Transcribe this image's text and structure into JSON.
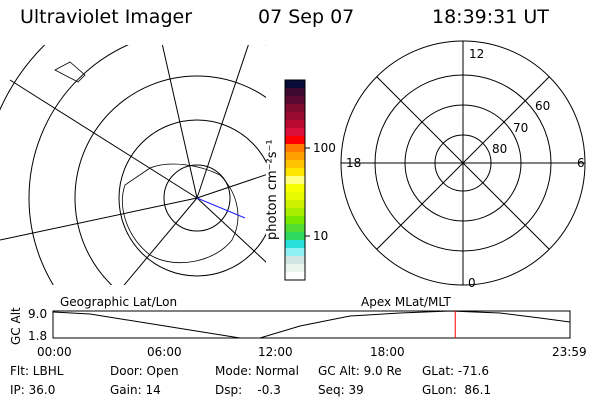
{
  "header": {
    "title": "Ultraviolet Imager",
    "date": "07 Sep 07",
    "time": "18:39:31 UT"
  },
  "colorbar": {
    "label": "photon cm⁻²s⁻¹",
    "ticks": [
      "100",
      "10"
    ],
    "colors": [
      "#0a0c38",
      "#3c0a30",
      "#5a0a30",
      "#800a30",
      "#9a0a30",
      "#b80a30",
      "#d8103a",
      "#ff0000",
      "#ff7800",
      "#ffa000",
      "#ffc400",
      "#ffe600",
      "#ffff80",
      "#f8ff00",
      "#e8fa00",
      "#ccf200",
      "#a8ee00",
      "#78e800",
      "#50dc30",
      "#30d860",
      "#28e0d8",
      "#90f0f4",
      "#d0e4e2",
      "#e8f4ec",
      "#ffffff"
    ]
  },
  "polar_plot": {
    "mlt_labels": [
      "12",
      "18",
      "6",
      "0"
    ],
    "lat_labels": [
      "60",
      "70",
      "80"
    ]
  },
  "timeline": {
    "left_label": "Geographic Lat/Lon",
    "right_label": "Apex MLat/MLT",
    "y_axis_label": "GC Alt",
    "y_ticks": [
      "9.0",
      "1.8"
    ],
    "x_ticks": [
      "00:00",
      "06:00",
      "12:00",
      "18:00",
      "23:59"
    ],
    "current_time_hours": 18.66,
    "current_marker_color": "#ff0000"
  },
  "status": {
    "flt": "Flt: LBHL",
    "ip": "IP: 36.0",
    "door": "Door: Open",
    "gain": "Gain: 14",
    "mode": "Mode: Normal",
    "dsp": "Dsp:    -0.3",
    "gc_alt": "GC Alt: 9.0 Re",
    "seq": "Seq: 39",
    "glat": "GLat: -71.6",
    "glon": "GLon:  86.1"
  }
}
